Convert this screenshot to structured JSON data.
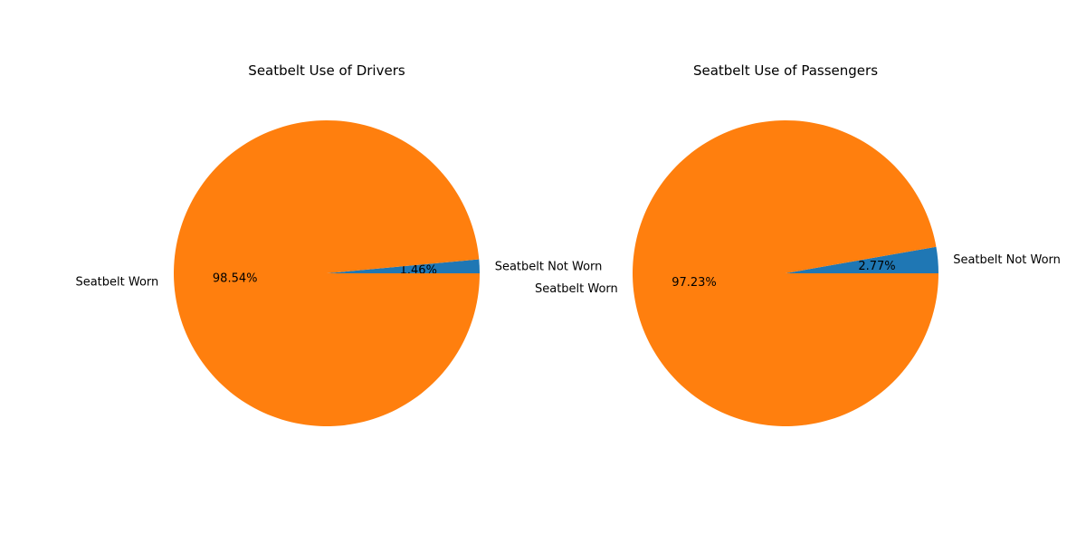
{
  "chart_data": [
    {
      "type": "pie",
      "title": "Seatbelt Use of Drivers",
      "labels": [
        "Seatbelt Not Worn",
        "Seatbelt Worn"
      ],
      "values": [
        1.46,
        98.54
      ],
      "percent_labels": [
        "1.46%",
        "98.54%"
      ],
      "colors": [
        "#1f77b4",
        "#ff7f0e"
      ],
      "start_angle_deg": 0,
      "direction": "counterclockwise"
    },
    {
      "type": "pie",
      "title": "Seatbelt Use of Passengers",
      "labels": [
        "Seatbelt Not Worn",
        "Seatbelt Worn"
      ],
      "values": [
        2.77,
        97.23
      ],
      "percent_labels": [
        "2.77%",
        "97.23%"
      ],
      "colors": [
        "#1f77b4",
        "#ff7f0e"
      ],
      "start_angle_deg": 0,
      "direction": "counterclockwise"
    }
  ]
}
